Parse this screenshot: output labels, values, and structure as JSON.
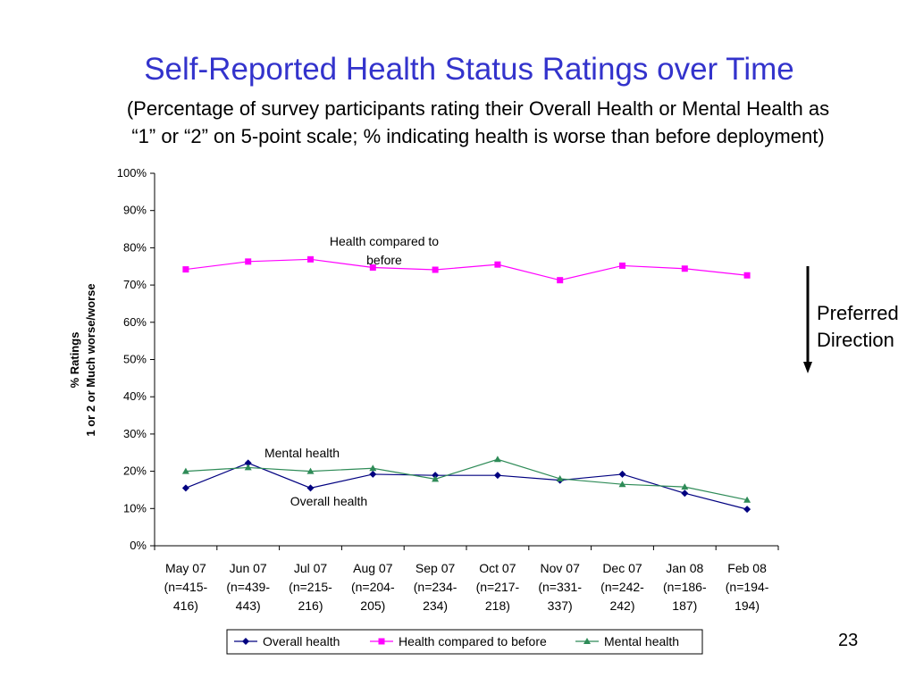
{
  "slide": {
    "title": "Self-Reported Health Status Ratings over Time",
    "subtitle_line1": "(Percentage of survey participants rating their Overall Health or Mental Health as",
    "subtitle_line2": "“1” or “2” on 5-point scale; % indicating health is worse than before deployment)",
    "page_number": "23",
    "preferred_line1": "Preferred",
    "preferred_line2": "Direction"
  },
  "chart_data": {
    "type": "line",
    "title": "",
    "ylabel_line1": "% Ratings",
    "ylabel_line2": "1 or 2 or Much worse/worse",
    "ylim": [
      0,
      100
    ],
    "yticks": [
      0,
      10,
      20,
      30,
      40,
      50,
      60,
      70,
      80,
      90,
      100
    ],
    "ytick_labels": [
      "0%",
      "10%",
      "20%",
      "30%",
      "40%",
      "50%",
      "60%",
      "70%",
      "80%",
      "90%",
      "100%"
    ],
    "categories": [
      [
        "May 07",
        "(n=415-",
        "416)"
      ],
      [
        "Jun 07",
        "(n=439-",
        "443)"
      ],
      [
        "Jul 07",
        "(n=215-",
        "216)"
      ],
      [
        "Aug 07",
        "(n=204-",
        "205)"
      ],
      [
        "Sep 07",
        "(n=234-",
        "234)"
      ],
      [
        "Oct 07",
        "(n=217-",
        "218)"
      ],
      [
        "Nov 07",
        "(n=331-",
        "337)"
      ],
      [
        "Dec 07",
        "(n=242-",
        "242)"
      ],
      [
        "Jan 08",
        "(n=186-",
        "187)"
      ],
      [
        "Feb 08",
        "(n=194-",
        "194)"
      ]
    ],
    "series": [
      {
        "name": "Overall health",
        "color": "#000080",
        "marker": "diamond",
        "values": [
          15.5,
          22.2,
          15.5,
          19.2,
          18.9,
          18.9,
          17.6,
          19.2,
          14.1,
          9.8
        ]
      },
      {
        "name": "Health compared to before",
        "color": "#ff00ff",
        "marker": "square",
        "values": [
          74.2,
          76.3,
          76.9,
          74.7,
          74.1,
          75.5,
          71.3,
          75.2,
          74.4,
          72.6
        ]
      },
      {
        "name": "Mental health",
        "color": "#2e8b57",
        "marker": "triangle",
        "values": [
          20.0,
          21.0,
          20.0,
          20.8,
          17.9,
          23.2,
          18.0,
          16.5,
          15.8,
          12.3
        ]
      }
    ],
    "annotations": [
      {
        "id": "health-compared",
        "lines": [
          "Health compared to",
          "before"
        ]
      },
      {
        "id": "mental",
        "lines": [
          "Mental health"
        ]
      },
      {
        "id": "overall",
        "lines": [
          "Overall health"
        ]
      }
    ],
    "grid": false,
    "legend_position": "bottom"
  }
}
